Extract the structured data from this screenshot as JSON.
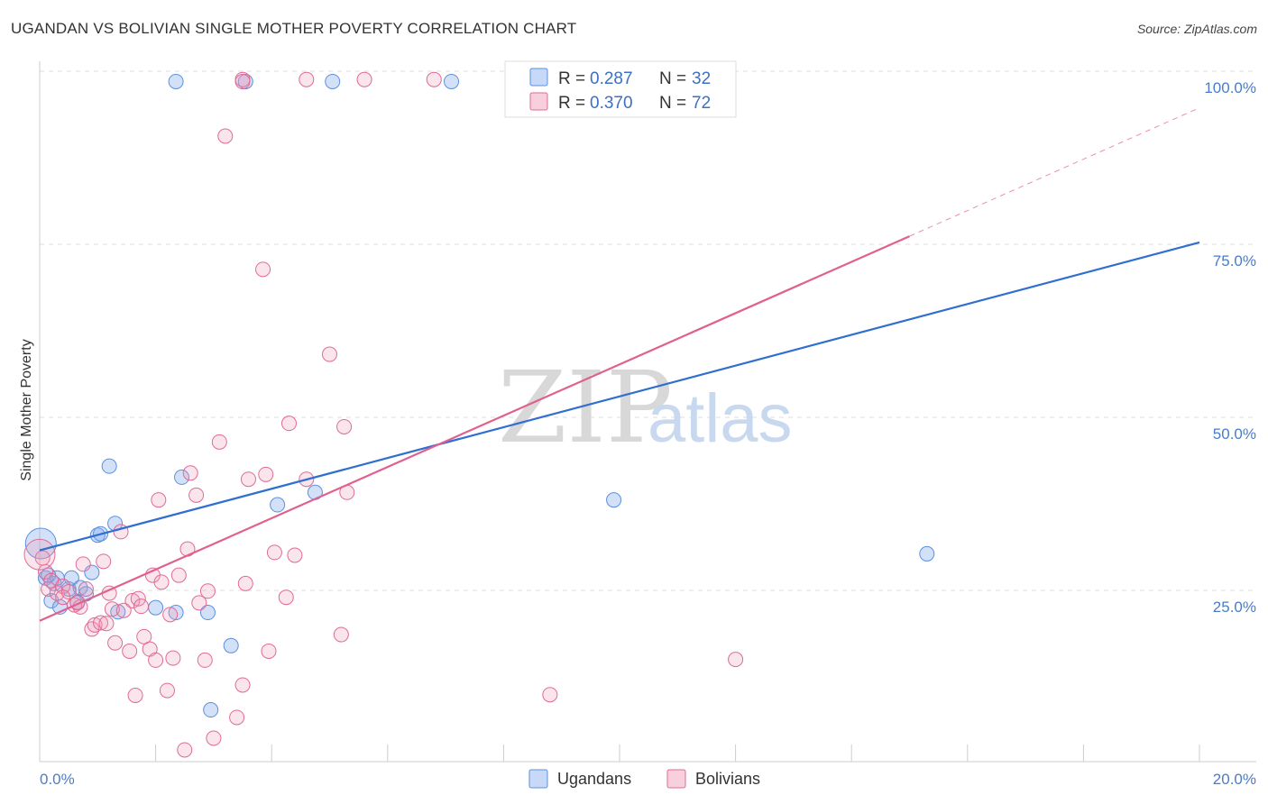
{
  "header": {
    "title": "UGANDAN VS BOLIVIAN SINGLE MOTHER POVERTY CORRELATION CHART",
    "source": "Source: ZipAtlas.com"
  },
  "watermark": {
    "zip": "ZIP",
    "atlas": "atlas"
  },
  "colors": {
    "ugandans": "#5b8fe0",
    "ugandans_fill": "rgba(130,170,235,0.35)",
    "ugandans_line": "#2f6fd0",
    "bolivians": "#e06a96",
    "bolivians_fill": "rgba(240,150,180,0.25)",
    "bolivians_line": "#e0608f",
    "grid": "#dddddd",
    "axis_text": "#4a7cc9"
  },
  "legend": {
    "rows": [
      {
        "r_label": "R =",
        "r_value": "0.287",
        "n_label": "N =",
        "n_value": "32"
      },
      {
        "r_label": "R =",
        "r_value": "0.370",
        "n_label": "N =",
        "n_value": "72"
      }
    ]
  },
  "bottom_legend": [
    "Ugandans",
    "Bolivians"
  ],
  "chart_data": {
    "type": "scatter",
    "title": "UGANDAN VS BOLIVIAN SINGLE MOTHER POVERTY CORRELATION CHART",
    "xlabel": "",
    "ylabel": "Single Mother Poverty",
    "xlim": [
      0,
      20
    ],
    "ylim": [
      0,
      100
    ],
    "x_tick_labels": [
      "0.0%",
      "20.0%"
    ],
    "y_tick_labels": [
      "25.0%",
      "50.0%",
      "75.0%",
      "100.0%"
    ],
    "y_ticks": [
      25,
      50,
      75,
      100
    ],
    "grid": true,
    "legend_position": "top-center",
    "series": [
      {
        "name": "Ugandans",
        "r": 0.287,
        "n": 32,
        "trend": {
          "x": [
            0,
            20
          ],
          "y": [
            30.6,
            75.2
          ]
        },
        "points": [
          [
            0.02,
            31.6
          ],
          [
            0.1,
            26.6
          ],
          [
            0.2,
            23.3
          ],
          [
            0.25,
            25.8
          ],
          [
            0.3,
            26.6
          ],
          [
            0.35,
            22.4
          ],
          [
            0.5,
            25.0
          ],
          [
            0.55,
            26.6
          ],
          [
            0.65,
            23.1
          ],
          [
            0.7,
            25.2
          ],
          [
            0.8,
            24.3
          ],
          [
            0.9,
            27.4
          ],
          [
            1.0,
            32.8
          ],
          [
            1.05,
            33.0
          ],
          [
            1.2,
            42.8
          ],
          [
            1.3,
            34.5
          ],
          [
            1.35,
            21.7
          ],
          [
            2.0,
            22.3
          ],
          [
            2.35,
            21.6
          ],
          [
            2.45,
            41.2
          ],
          [
            2.9,
            21.6
          ],
          [
            3.3,
            16.8
          ],
          [
            2.95,
            7.5
          ],
          [
            4.1,
            37.2
          ],
          [
            4.75,
            39.0
          ],
          [
            2.35,
            98.5
          ],
          [
            3.55,
            98.5
          ],
          [
            5.05,
            98.5
          ],
          [
            7.1,
            98.5
          ],
          [
            9.9,
            37.9
          ],
          [
            15.3,
            30.1
          ],
          [
            0.15,
            27.0
          ]
        ]
      },
      {
        "name": "Bolivians",
        "r": 0.37,
        "n": 72,
        "trend": {
          "x": [
            0,
            15
          ],
          "y": [
            20.4,
            76.1
          ]
        },
        "trend_dashed": {
          "x": [
            15,
            20
          ],
          "y": [
            76.1,
            94.7
          ]
        },
        "points": [
          [
            0.05,
            29.5
          ],
          [
            0.1,
            27.5
          ],
          [
            0.15,
            25.0
          ],
          [
            0.2,
            26.2
          ],
          [
            0.3,
            24.4
          ],
          [
            0.4,
            25.4
          ],
          [
            0.5,
            24.6
          ],
          [
            0.6,
            22.7
          ],
          [
            0.7,
            22.4
          ],
          [
            0.75,
            28.6
          ],
          [
            0.8,
            25.0
          ],
          [
            0.9,
            19.2
          ],
          [
            0.95,
            19.8
          ],
          [
            1.05,
            20.1
          ],
          [
            1.15,
            20.0
          ],
          [
            1.2,
            24.4
          ],
          [
            1.25,
            22.1
          ],
          [
            1.3,
            17.2
          ],
          [
            1.4,
            33.3
          ],
          [
            1.45,
            21.9
          ],
          [
            1.55,
            16.0
          ],
          [
            1.6,
            23.3
          ],
          [
            1.65,
            9.6
          ],
          [
            1.7,
            23.6
          ],
          [
            1.75,
            22.5
          ],
          [
            1.8,
            18.1
          ],
          [
            1.9,
            16.3
          ],
          [
            1.95,
            27.0
          ],
          [
            2.0,
            14.7
          ],
          [
            2.05,
            37.9
          ],
          [
            2.1,
            26.0
          ],
          [
            2.2,
            10.3
          ],
          [
            2.25,
            21.3
          ],
          [
            2.4,
            27.0
          ],
          [
            2.5,
            1.7
          ],
          [
            2.55,
            30.8
          ],
          [
            2.6,
            41.8
          ],
          [
            2.7,
            38.6
          ],
          [
            2.75,
            23.0
          ],
          [
            2.85,
            14.7
          ],
          [
            2.9,
            24.7
          ],
          [
            3.0,
            3.4
          ],
          [
            3.1,
            46.3
          ],
          [
            3.4,
            6.4
          ],
          [
            3.5,
            11.1
          ],
          [
            3.55,
            25.8
          ],
          [
            3.6,
            40.9
          ],
          [
            3.85,
            71.3
          ],
          [
            3.9,
            41.6
          ],
          [
            3.95,
            16.0
          ],
          [
            4.05,
            30.3
          ],
          [
            4.25,
            23.8
          ],
          [
            4.3,
            49.0
          ],
          [
            4.4,
            29.9
          ],
          [
            4.6,
            40.9
          ],
          [
            5.0,
            59.0
          ],
          [
            5.2,
            18.4
          ],
          [
            5.25,
            48.5
          ],
          [
            5.3,
            39.0
          ],
          [
            6.8,
            98.8
          ],
          [
            8.8,
            9.7
          ],
          [
            12.0,
            14.8
          ],
          [
            3.2,
            90.6
          ],
          [
            3.5,
            98.8
          ],
          [
            5.6,
            98.8
          ],
          [
            3.5,
            98.5
          ],
          [
            0.0,
            30.0
          ],
          [
            0.4,
            23.8
          ],
          [
            0.65,
            23.0
          ],
          [
            1.1,
            29.0
          ],
          [
            2.3,
            15.0
          ],
          [
            4.6,
            98.8
          ]
        ]
      }
    ]
  }
}
